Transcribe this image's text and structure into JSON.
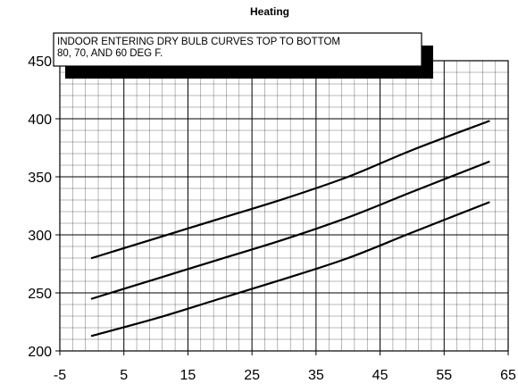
{
  "chart_data": {
    "type": "line",
    "title": "Heating",
    "xlabel": "",
    "ylabel": "",
    "xlim": [
      -5,
      65
    ],
    "ylim": [
      200,
      450
    ],
    "grid": true,
    "legend": "none",
    "x_ticks": [
      -5,
      5,
      15,
      25,
      35,
      45,
      55,
      65
    ],
    "y_ticks": [
      200,
      250,
      300,
      350,
      400,
      450
    ],
    "annotation": {
      "lines": [
        "INDOOR ENTERING DRY BULB CURVES TOP TO BOTTOM",
        "80, 70, AND 60 DEG F."
      ]
    },
    "series": [
      {
        "x": [
          0,
          10,
          20,
          30,
          40,
          50,
          62
        ],
        "y": [
          280,
          297,
          314,
          331,
          350,
          373,
          398
        ]
      },
      {
        "x": [
          0,
          10,
          20,
          30,
          40,
          50,
          62
        ],
        "y": [
          245,
          262,
          279,
          296,
          315,
          337,
          363
        ]
      },
      {
        "x": [
          0,
          10,
          20,
          30,
          40,
          50,
          62
        ],
        "y": [
          213,
          228,
          245,
          262,
          280,
          302,
          328
        ]
      }
    ],
    "colors": {
      "curves": "#000000",
      "grid": "#000000",
      "background": "#ffffff"
    }
  }
}
